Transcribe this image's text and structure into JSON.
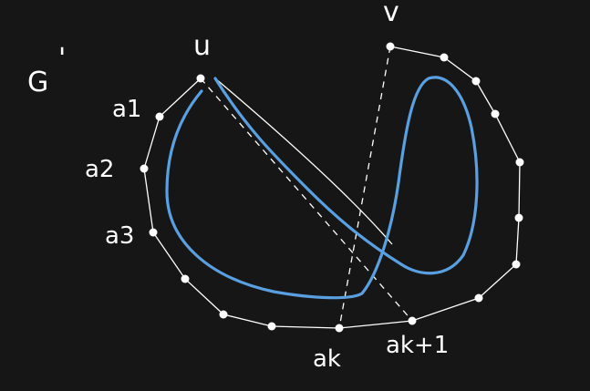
{
  "labels": {
    "graph": "G",
    "graph_prime": "'",
    "u": "u",
    "v": "v",
    "a1": "a1",
    "a2": "a2",
    "a3": "a3",
    "ak": "ak",
    "ak_plus_1": "ak+1"
  },
  "colors": {
    "background": "#161616",
    "edges": "#ffffff",
    "path": "#5a9fe0"
  }
}
